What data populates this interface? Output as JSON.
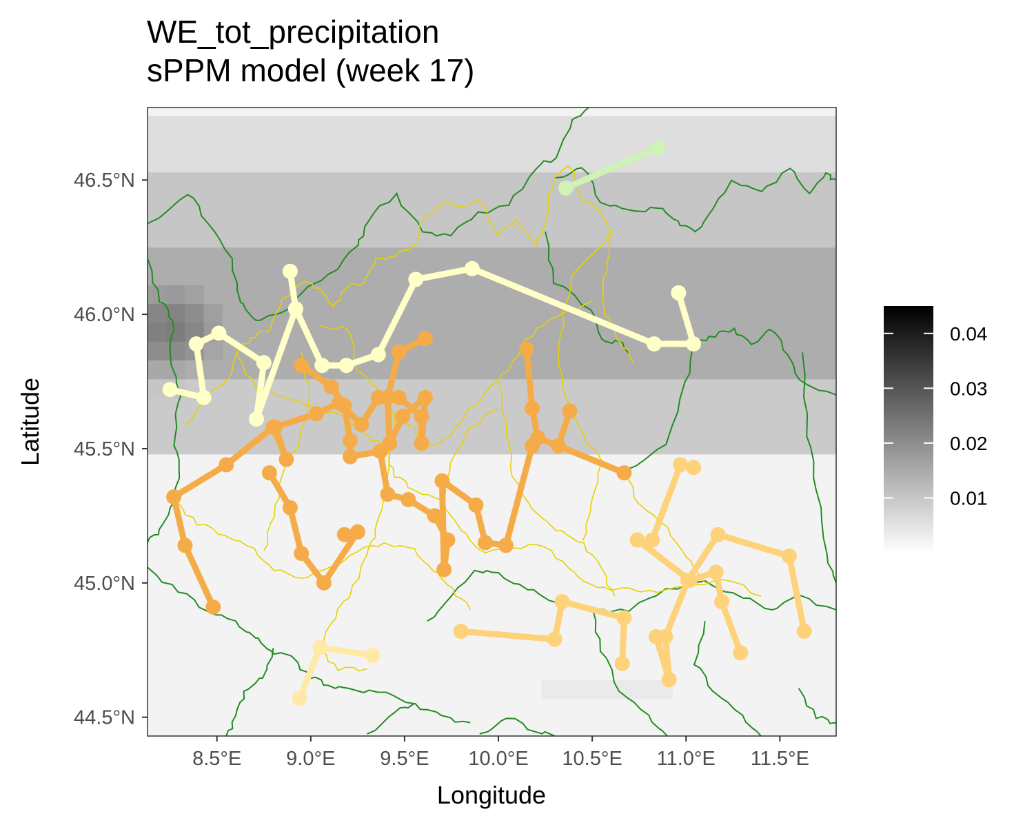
{
  "title": {
    "line1": "WE_tot_precipitation",
    "line2": "sPPM model (week 17)"
  },
  "colors": {
    "panel_border": "#333333",
    "region_borders": "#228B22",
    "province_borders": "#E6D200",
    "yellow_track": "#FFFFC8",
    "orange_track": "#F5AC48",
    "light_orange_track": "#FDD27A",
    "pale_orange_track": "#FFE9A6",
    "green_track": "#CFF2B5"
  },
  "chart_data": {
    "type": "map",
    "title": "WE_tot_precipitation\nsPPM model (week 17)",
    "xlabel": "Longitude",
    "ylabel": "Latitude",
    "xlim": [
      8.13,
      11.8
    ],
    "ylim": [
      44.43,
      46.77
    ],
    "x_ticks": [
      8.5,
      9.0,
      9.5,
      10.0,
      10.5,
      11.0,
      11.5
    ],
    "x_tick_labels": [
      "8.5°E",
      "9.0°E",
      "9.5°E",
      "10.0°E",
      "10.5°E",
      "11.0°E",
      "11.5°E"
    ],
    "y_ticks": [
      44.5,
      45.0,
      45.5,
      46.0,
      46.5
    ],
    "y_tick_labels": [
      "44.5°N",
      "45.0°N",
      "45.5°N",
      "46.0°N",
      "46.5°N"
    ],
    "legend": {
      "position": "right",
      "type": "gradient",
      "low_color": "#ffffff",
      "high_color": "#000000",
      "range": [
        0,
        0.045
      ],
      "ticks": [
        0.01,
        0.02,
        0.03,
        0.04
      ],
      "tick_labels": [
        "0.01",
        "0.02",
        "0.03",
        "0.04"
      ]
    },
    "background_field": {
      "description_levels": [
        {
          "lat_band": [
            46.5,
            46.77
          ],
          "value": 0.008
        },
        {
          "lat_band": [
            46.25,
            46.5
          ],
          "value": 0.014
        },
        {
          "lat_band": [
            45.75,
            46.25
          ],
          "value": 0.02
        },
        {
          "lat_band": [
            45.45,
            45.75
          ],
          "value": 0.013
        },
        {
          "lat_band": [
            44.43,
            45.45
          ],
          "value": 0.003
        }
      ],
      "hotspot": {
        "lon": 8.25,
        "lat": 45.95,
        "value": 0.032
      }
    },
    "series": [
      {
        "color": "#FFFFC8",
        "points": [
          [
            8.25,
            45.72
          ],
          [
            8.43,
            45.69
          ],
          [
            8.39,
            45.89
          ],
          [
            8.51,
            45.93
          ],
          [
            8.75,
            45.82
          ],
          [
            8.71,
            45.61
          ],
          [
            8.92,
            46.02
          ],
          [
            8.89,
            46.16
          ],
          [
            8.92,
            46.02
          ],
          [
            9.06,
            45.81
          ],
          [
            9.19,
            45.81
          ],
          [
            9.36,
            45.85
          ],
          [
            9.56,
            46.13
          ],
          [
            9.86,
            46.17
          ],
          [
            10.83,
            45.89
          ],
          [
            11.04,
            45.89
          ],
          [
            10.96,
            46.08
          ]
        ]
      },
      {
        "color": "#CFF2B5",
        "points": [
          [
            10.36,
            46.47
          ],
          [
            10.85,
            46.62
          ]
        ]
      },
      {
        "color": "#F5AC48",
        "points": [
          [
            8.48,
            44.91
          ],
          [
            8.33,
            45.14
          ],
          [
            8.27,
            45.32
          ],
          [
            8.55,
            45.44
          ],
          [
            8.8,
            45.58
          ],
          [
            8.87,
            45.46
          ],
          [
            8.81,
            45.58
          ],
          [
            9.03,
            45.63
          ],
          [
            9.15,
            45.67
          ],
          [
            9.27,
            45.59
          ],
          [
            9.36,
            45.69
          ],
          [
            9.47,
            45.69
          ],
          [
            9.59,
            45.62
          ],
          [
            9.59,
            45.52
          ],
          [
            9.61,
            45.69
          ],
          [
            9.49,
            45.62
          ],
          [
            9.42,
            45.52
          ],
          [
            9.41,
            45.69
          ],
          [
            9.47,
            45.86
          ],
          [
            9.61,
            45.91
          ]
        ]
      },
      {
        "color": "#F5AC48",
        "points": [
          [
            8.78,
            45.41
          ],
          [
            8.89,
            45.28
          ],
          [
            8.95,
            45.11
          ],
          [
            9.07,
            45.0
          ],
          [
            9.25,
            45.19
          ],
          [
            9.18,
            45.18
          ]
        ]
      },
      {
        "color": "#F5AC48",
        "points": [
          [
            8.95,
            45.81
          ],
          [
            9.11,
            45.73
          ],
          [
            9.18,
            45.66
          ],
          [
            9.21,
            45.53
          ],
          [
            9.21,
            45.47
          ],
          [
            9.37,
            45.49
          ],
          [
            9.41,
            45.33
          ],
          [
            9.52,
            45.31
          ],
          [
            9.66,
            45.25
          ],
          [
            9.73,
            45.16
          ],
          [
            9.71,
            45.05
          ],
          [
            9.7,
            45.38
          ],
          [
            9.88,
            45.29
          ],
          [
            9.93,
            45.15
          ],
          [
            10.04,
            45.14
          ],
          [
            10.18,
            45.51
          ],
          [
            10.21,
            45.54
          ],
          [
            10.32,
            45.51
          ],
          [
            10.38,
            45.64
          ]
        ]
      },
      {
        "color": "#F5AC48",
        "points": [
          [
            10.15,
            45.87
          ],
          [
            10.18,
            45.65
          ],
          [
            10.21,
            45.54
          ],
          [
            10.32,
            45.51
          ],
          [
            10.67,
            45.41
          ]
        ]
      },
      {
        "color": "#FDD27A",
        "points": [
          [
            9.8,
            44.82
          ],
          [
            10.3,
            44.79
          ],
          [
            10.34,
            44.93
          ],
          [
            10.67,
            44.87
          ],
          [
            10.66,
            44.7
          ]
        ]
      },
      {
        "color": "#FDD27A",
        "points": [
          [
            10.74,
            45.16
          ],
          [
            11.02,
            45.01
          ],
          [
            11.16,
            45.04
          ],
          [
            11.19,
            44.93
          ],
          [
            11.29,
            44.74
          ]
        ]
      },
      {
        "color": "#FDD27A",
        "points": [
          [
            10.82,
            45.16
          ],
          [
            10.97,
            45.44
          ],
          [
            11.04,
            45.43
          ]
        ]
      },
      {
        "color": "#FDD27A",
        "points": [
          [
            10.84,
            44.8
          ],
          [
            10.91,
            44.64
          ],
          [
            10.89,
            44.8
          ],
          [
            11.01,
            45.01
          ],
          [
            11.17,
            45.18
          ],
          [
            11.55,
            45.1
          ],
          [
            11.63,
            44.82
          ]
        ]
      },
      {
        "color": "#FFE9A6",
        "points": [
          [
            8.94,
            44.57
          ],
          [
            9.05,
            44.76
          ],
          [
            9.33,
            44.73
          ]
        ]
      }
    ]
  }
}
